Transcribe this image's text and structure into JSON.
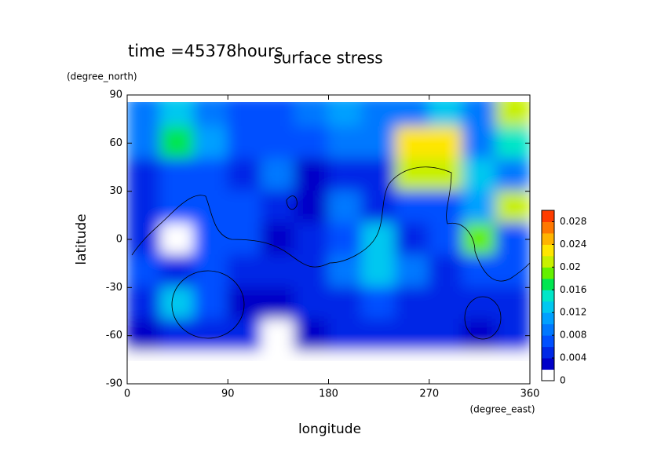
{
  "chart_data": {
    "type": "heatmap",
    "title": "surface stress",
    "subtitle": "time =45378hours",
    "xlabel": "longitude",
    "xunit": "(degree_east)",
    "ylabel": "latitude",
    "yunit": "(degree_north)",
    "x": [
      15,
      45,
      75,
      105,
      135,
      165,
      195,
      225,
      255,
      285,
      315,
      345
    ],
    "y": [
      80,
      60,
      40,
      20,
      0,
      -20,
      -40,
      -60,
      -80
    ],
    "z": [
      [
        0.008,
        0.012,
        0.008,
        0.006,
        0.006,
        0.008,
        0.01,
        0.008,
        0.008,
        0.012,
        0.008,
        0.02
      ],
      [
        0.008,
        0.016,
        0.01,
        0.006,
        0.006,
        0.006,
        0.008,
        0.008,
        0.022,
        0.022,
        0.008,
        0.014
      ],
      [
        0.004,
        0.006,
        0.006,
        0.004,
        0.008,
        0.002,
        0.004,
        0.004,
        0.02,
        0.02,
        0.012,
        0.008
      ],
      [
        0.004,
        0.006,
        0.006,
        0.006,
        0.004,
        0.002,
        0.008,
        0.004,
        0.006,
        0.006,
        0.01,
        0.02
      ],
      [
        0.004,
        0,
        0.006,
        0.006,
        0.002,
        0.004,
        0.006,
        0.012,
        0.004,
        0.006,
        0.018,
        0.006
      ],
      [
        0.006,
        0.004,
        0.006,
        0.004,
        0.004,
        0.004,
        0.008,
        0.012,
        0.008,
        0.004,
        0.006,
        0.006
      ],
      [
        0.004,
        0.012,
        0.006,
        0.002,
        0.002,
        0.004,
        0.004,
        0.006,
        0.004,
        0.004,
        0.004,
        0.004
      ],
      [
        0.002,
        0.004,
        0.004,
        0.004,
        0,
        0.002,
        0.004,
        0.004,
        0.004,
        0.004,
        0.002,
        0.004
      ],
      [
        0,
        0,
        0,
        0,
        0,
        0,
        0,
        0,
        0,
        0,
        0,
        0
      ]
    ],
    "xlim": [
      0,
      360
    ],
    "xticks": [
      0,
      90,
      180,
      270,
      360
    ],
    "ylim": [
      -90,
      90
    ],
    "yticks": [
      -90,
      -60,
      -30,
      0,
      30,
      60,
      90
    ],
    "clim": [
      0,
      0.03
    ],
    "cticks": [
      0,
      0.004,
      0.008,
      0.012,
      0.016,
      0.02,
      0.024,
      0.028
    ],
    "colors": [
      "#ffffff",
      "#0000c8",
      "#0028e6",
      "#0050ff",
      "#0078ff",
      "#00a0ff",
      "#00c8f0",
      "#00e6c8",
      "#00e650",
      "#64f000",
      "#c8f000",
      "#ffe600",
      "#ffb400",
      "#ff7800",
      "#ff3c00"
    ]
  }
}
